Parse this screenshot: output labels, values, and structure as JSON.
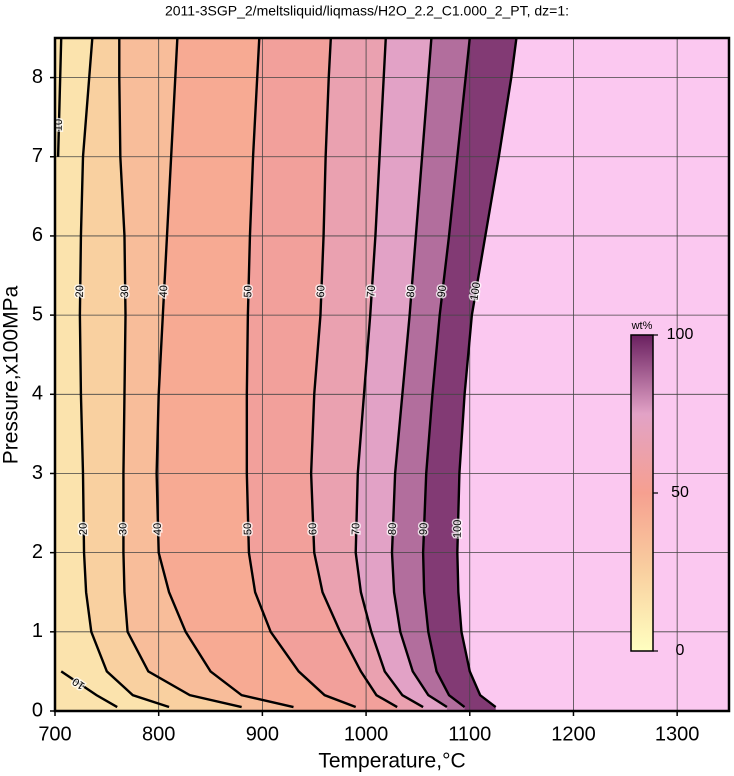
{
  "chart_data": {
    "type": "contour",
    "title": "2011-3SGP_2/meltsliquid/liqmass/H2O_2.2_C1.000_2_PT, dz=1:",
    "x_label": "Temperature,°C",
    "y_label": "Pressure,x100MPa",
    "xlim": [
      700,
      1350
    ],
    "ylim": [
      0,
      8.5
    ],
    "xticks": [
      700,
      800,
      900,
      1000,
      1100,
      1200,
      1300
    ],
    "yticks": [
      0,
      1,
      2,
      3,
      4,
      5,
      6,
      7,
      8
    ],
    "grid": true,
    "line_color": "#000000",
    "grid_color": "#444444",
    "above_color": "#fbc8f0",
    "colormap": [
      "#ffffc0",
      "#f9d0a0",
      "#f6a090",
      "#e2a2c6",
      "#6a2060"
    ],
    "colorbar": {
      "label": "wt%",
      "lim": [
        0,
        100
      ],
      "ticks": [
        0,
        50,
        100
      ]
    },
    "series": [
      {
        "name": "10",
        "x": [
          760,
          740,
          706,
          null,
          null,
          null,
          null,
          null,
          null,
          null,
          703,
          705,
          706
        ],
        "y": [
          0.05,
          0.2,
          0.5,
          1,
          1.5,
          2,
          3,
          4,
          5,
          6,
          7,
          8,
          8.5
        ]
      },
      {
        "name": "20",
        "x": [
          810,
          775,
          750,
          735,
          730,
          728,
          727,
          725,
          724,
          725,
          727,
          733,
          736
        ],
        "y": [
          0.05,
          0.2,
          0.5,
          1,
          1.5,
          2,
          3,
          4,
          5,
          6,
          7,
          8,
          8.5
        ]
      },
      {
        "name": "30",
        "x": [
          880,
          830,
          790,
          770,
          767,
          766,
          766,
          767,
          768,
          767,
          763,
          762,
          762
        ],
        "y": [
          0.05,
          0.2,
          0.5,
          1,
          1.5,
          2,
          3,
          4,
          5,
          6,
          7,
          8,
          8.5
        ]
      },
      {
        "name": "40",
        "x": [
          930,
          880,
          850,
          826,
          810,
          800,
          798,
          800,
          804,
          808,
          812,
          816,
          818
        ],
        "y": [
          0.05,
          0.2,
          0.5,
          1,
          1.5,
          2,
          3,
          4,
          5,
          6,
          7,
          8,
          8.5
        ]
      },
      {
        "name": "50",
        "x": [
          990,
          960,
          935,
          908,
          893,
          887,
          885,
          885,
          886,
          888,
          891,
          895,
          897
        ],
        "y": [
          0.05,
          0.2,
          0.5,
          1,
          1.5,
          2,
          3,
          4,
          5,
          6,
          7,
          8,
          8.5
        ]
      },
      {
        "name": "60",
        "x": [
          1030,
          1010,
          995,
          975,
          958,
          950,
          947,
          950,
          956,
          959,
          961,
          964,
          966
        ],
        "y": [
          0.05,
          0.2,
          0.5,
          1,
          1.5,
          2,
          3,
          4,
          5,
          6,
          7,
          8,
          8.5
        ]
      },
      {
        "name": "70",
        "x": [
          1055,
          1035,
          1018,
          1005,
          995,
          990,
          992,
          998,
          1004,
          1009,
          1013,
          1017,
          1019
        ],
        "y": [
          0.05,
          0.2,
          0.5,
          1,
          1.5,
          2,
          3,
          4,
          5,
          6,
          7,
          8,
          8.5
        ]
      },
      {
        "name": "80",
        "x": [
          1078,
          1060,
          1045,
          1033,
          1027,
          1025,
          1028,
          1035,
          1042,
          1048,
          1054,
          1060,
          1063
        ],
        "y": [
          0.05,
          0.2,
          0.5,
          1,
          1.5,
          2,
          3,
          4,
          5,
          6,
          7,
          8,
          8.5
        ]
      },
      {
        "name": "90",
        "x": [
          1095,
          1080,
          1068,
          1060,
          1056,
          1055,
          1058,
          1064,
          1071,
          1080,
          1088,
          1096,
          1100
        ],
        "y": [
          0.05,
          0.2,
          0.5,
          1,
          1.5,
          2,
          3,
          4,
          5,
          6,
          7,
          8,
          8.5
        ]
      },
      {
        "name": "100",
        "x": [
          1125,
          1110,
          1100,
          1092,
          1089,
          1088,
          1090,
          1095,
          1102,
          1115,
          1128,
          1140,
          1145
        ],
        "y": [
          0.05,
          0.2,
          0.5,
          1,
          1.5,
          2,
          3,
          4,
          5,
          6,
          7,
          8,
          8.5
        ]
      }
    ]
  }
}
